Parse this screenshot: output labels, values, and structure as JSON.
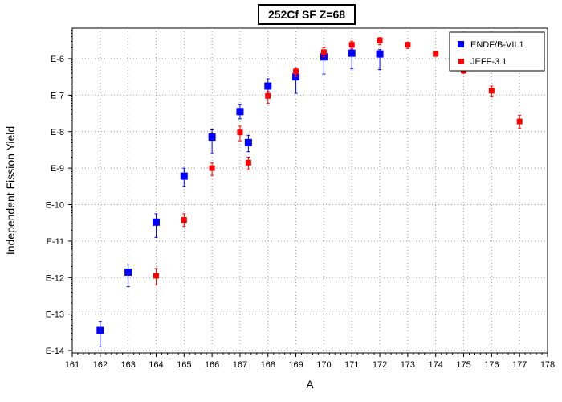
{
  "chart_data": {
    "type": "scatter",
    "title": "252Cf SF Z=68",
    "xlabel": "A",
    "ylabel": "Independent Fission Yield",
    "xlim": [
      161,
      178
    ],
    "ylim_exponent": [
      -14,
      -5.6
    ],
    "y_scale": "log",
    "x_ticks": [
      "161",
      "162",
      "163",
      "164",
      "165",
      "166",
      "167",
      "168",
      "169",
      "170",
      "171",
      "172",
      "173",
      "174",
      "175",
      "176",
      "177",
      "178"
    ],
    "y_ticks": [
      {
        "label": "E-14",
        "exp": -14
      },
      {
        "label": "E-13",
        "exp": -13
      },
      {
        "label": "E-12",
        "exp": -12
      },
      {
        "label": "E-11",
        "exp": -11
      },
      {
        "label": "E-10",
        "exp": -10
      },
      {
        "label": "E-9",
        "exp": -9
      },
      {
        "label": "E-8",
        "exp": -8
      },
      {
        "label": "E-7",
        "exp": -7
      },
      {
        "label": "E-6",
        "exp": -6
      }
    ],
    "grid": true,
    "legend_position": "top-right",
    "series": [
      {
        "name": "ENDF/B-VII.1",
        "color": "#0000ff",
        "points": [
          {
            "x": 162,
            "exp": -13.45,
            "err_lo": -13.9,
            "err_hi": -13.2
          },
          {
            "x": 163,
            "exp": -11.85,
            "err_lo": -12.25,
            "err_hi": -11.65
          },
          {
            "x": 164,
            "exp": -10.48,
            "err_lo": -10.9,
            "err_hi": -10.25
          },
          {
            "x": 165,
            "exp": -9.22,
            "err_lo": -9.5,
            "err_hi": -9.0
          },
          {
            "x": 166,
            "exp": -8.15,
            "err_lo": -8.6,
            "err_hi": -7.95
          },
          {
            "x": 167,
            "exp": -7.45,
            "err_lo": -7.65,
            "err_hi": -7.25
          },
          {
            "x": 167.3,
            "exp": -8.3,
            "err_lo": -8.55,
            "err_hi": -8.1
          },
          {
            "x": 168,
            "exp": -6.75,
            "err_lo": -6.95,
            "err_hi": -6.55
          },
          {
            "x": 169,
            "exp": -6.5,
            "err_lo": -6.95,
            "err_hi": -6.35
          },
          {
            "x": 170,
            "exp": -5.95,
            "err_lo": -6.42,
            "err_hi": -5.85
          },
          {
            "x": 171,
            "exp": -5.85,
            "err_lo": -6.28,
            "err_hi": -5.75
          },
          {
            "x": 172,
            "exp": -5.87,
            "err_lo": -6.3,
            "err_hi": -5.75
          }
        ]
      },
      {
        "name": "JEFF-3.1",
        "color": "#ff0000",
        "points": [
          {
            "x": 164,
            "exp": -11.95,
            "err_lo": -12.2,
            "err_hi": -11.75
          },
          {
            "x": 165,
            "exp": -10.42,
            "err_lo": -10.6,
            "err_hi": -10.25
          },
          {
            "x": 166,
            "exp": -9.0,
            "err_lo": -9.2,
            "err_hi": -8.85
          },
          {
            "x": 167,
            "exp": -8.02,
            "err_lo": -8.25,
            "err_hi": -7.85
          },
          {
            "x": 167.3,
            "exp": -8.85,
            "err_lo": -9.05,
            "err_hi": -8.7
          },
          {
            "x": 168,
            "exp": -7.02,
            "err_lo": -7.22,
            "err_hi": -6.9
          },
          {
            "x": 169,
            "exp": -6.35,
            "err_lo": -6.5,
            "err_hi": -6.25
          },
          {
            "x": 170,
            "exp": -5.82,
            "err_lo": -5.95,
            "err_hi": -5.7
          },
          {
            "x": 171,
            "exp": -5.62,
            "err_lo": -5.72,
            "err_hi": -5.52
          },
          {
            "x": 172,
            "exp": -5.5,
            "err_lo": -5.62,
            "err_hi": -5.42
          },
          {
            "x": 173,
            "exp": -5.62,
            "err_lo": -5.72,
            "err_hi": -5.55
          },
          {
            "x": 174,
            "exp": -5.87,
            "err_lo": -5.92,
            "err_hi": -5.82
          },
          {
            "x": 175,
            "exp": -6.32,
            "err_lo": -6.4,
            "err_hi": -6.25
          },
          {
            "x": 176,
            "exp": -6.88,
            "err_lo": -7.05,
            "err_hi": -6.75
          },
          {
            "x": 177,
            "exp": -7.72,
            "err_lo": -7.9,
            "err_hi": -7.55
          }
        ]
      }
    ]
  }
}
